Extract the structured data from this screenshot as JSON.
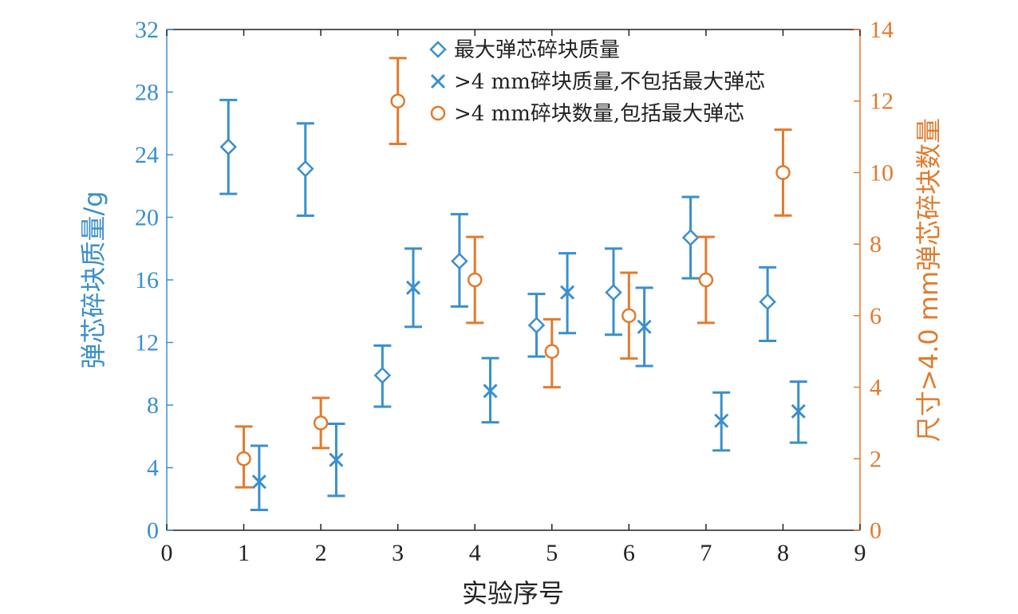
{
  "chart_data": {
    "type": "scatter",
    "x_axis": {
      "label": "实验序号",
      "range": [
        0,
        9
      ],
      "ticks": [
        "0",
        "1",
        "2",
        "3",
        "4",
        "5",
        "6",
        "7",
        "8",
        "9"
      ]
    },
    "y_left_axis": {
      "label": "弹芯碎块质量/g",
      "range": [
        0,
        32
      ],
      "ticks": [
        "0",
        "4",
        "8",
        "12",
        "16",
        "20",
        "24",
        "28",
        "32"
      ]
    },
    "y_right_axis": {
      "label": "尺寸>4.0 mm弹芯碎块数量",
      "range": [
        0,
        14
      ],
      "ticks": [
        "0",
        "2",
        "4",
        "6",
        "8",
        "10",
        "12",
        "14"
      ]
    },
    "grid": false,
    "legend_position": "top-center",
    "series": [
      {
        "name": "最大弹芯碎块质量",
        "axis": "left",
        "marker": "diamond",
        "color": "#3a8fcc",
        "points": [
          {
            "x": 0.8,
            "y": 24.5,
            "lo": 21.5,
            "hi": 27.5
          },
          {
            "x": 1.8,
            "y": 23.1,
            "lo": 20.1,
            "hi": 26.0
          },
          {
            "x": 2.8,
            "y": 9.9,
            "lo": 7.9,
            "hi": 11.8
          },
          {
            "x": 3.8,
            "y": 17.2,
            "lo": 14.3,
            "hi": 20.2
          },
          {
            "x": 4.8,
            "y": 13.1,
            "lo": 11.1,
            "hi": 15.1
          },
          {
            "x": 5.8,
            "y": 15.2,
            "lo": 12.5,
            "hi": 18.0
          },
          {
            "x": 6.8,
            "y": 18.7,
            "lo": 16.1,
            "hi": 21.3
          },
          {
            "x": 7.8,
            "y": 14.6,
            "lo": 12.1,
            "hi": 16.8
          }
        ]
      },
      {
        "name": ">4 mm碎块质量,不包括最大弹芯",
        "axis": "left",
        "marker": "x",
        "color": "#3a8fcc",
        "points": [
          {
            "x": 1.2,
            "y": 3.1,
            "lo": 1.3,
            "hi": 5.4
          },
          {
            "x": 2.2,
            "y": 4.5,
            "lo": 2.2,
            "hi": 6.8
          },
          {
            "x": 3.2,
            "y": 15.5,
            "lo": 13.0,
            "hi": 18.0
          },
          {
            "x": 4.2,
            "y": 8.9,
            "lo": 6.9,
            "hi": 11.0
          },
          {
            "x": 5.2,
            "y": 15.2,
            "lo": 12.6,
            "hi": 17.7
          },
          {
            "x": 6.2,
            "y": 13.0,
            "lo": 10.5,
            "hi": 15.5
          },
          {
            "x": 7.2,
            "y": 7.0,
            "lo": 5.1,
            "hi": 8.8
          },
          {
            "x": 8.2,
            "y": 7.6,
            "lo": 5.6,
            "hi": 9.5
          }
        ]
      },
      {
        "name": ">4 mm碎块数量,包括最大弹芯",
        "axis": "right",
        "marker": "circle",
        "color": "#e07b2e",
        "points": [
          {
            "x": 1.0,
            "y": 2.0,
            "lo": 1.2,
            "hi": 2.9
          },
          {
            "x": 2.0,
            "y": 3.0,
            "lo": 2.3,
            "hi": 3.7
          },
          {
            "x": 3.0,
            "y": 12.0,
            "lo": 10.8,
            "hi": 13.2
          },
          {
            "x": 4.0,
            "y": 7.0,
            "lo": 5.8,
            "hi": 8.2
          },
          {
            "x": 5.0,
            "y": 5.0,
            "lo": 4.0,
            "hi": 5.9
          },
          {
            "x": 6.0,
            "y": 6.0,
            "lo": 4.8,
            "hi": 7.2
          },
          {
            "x": 7.0,
            "y": 7.0,
            "lo": 5.8,
            "hi": 8.2
          },
          {
            "x": 8.0,
            "y": 10.0,
            "lo": 8.8,
            "hi": 11.2
          }
        ]
      }
    ]
  },
  "colors": {
    "left_axis": "#3a8fcc",
    "right_axis": "#e07b2e",
    "frame": "#222222"
  }
}
